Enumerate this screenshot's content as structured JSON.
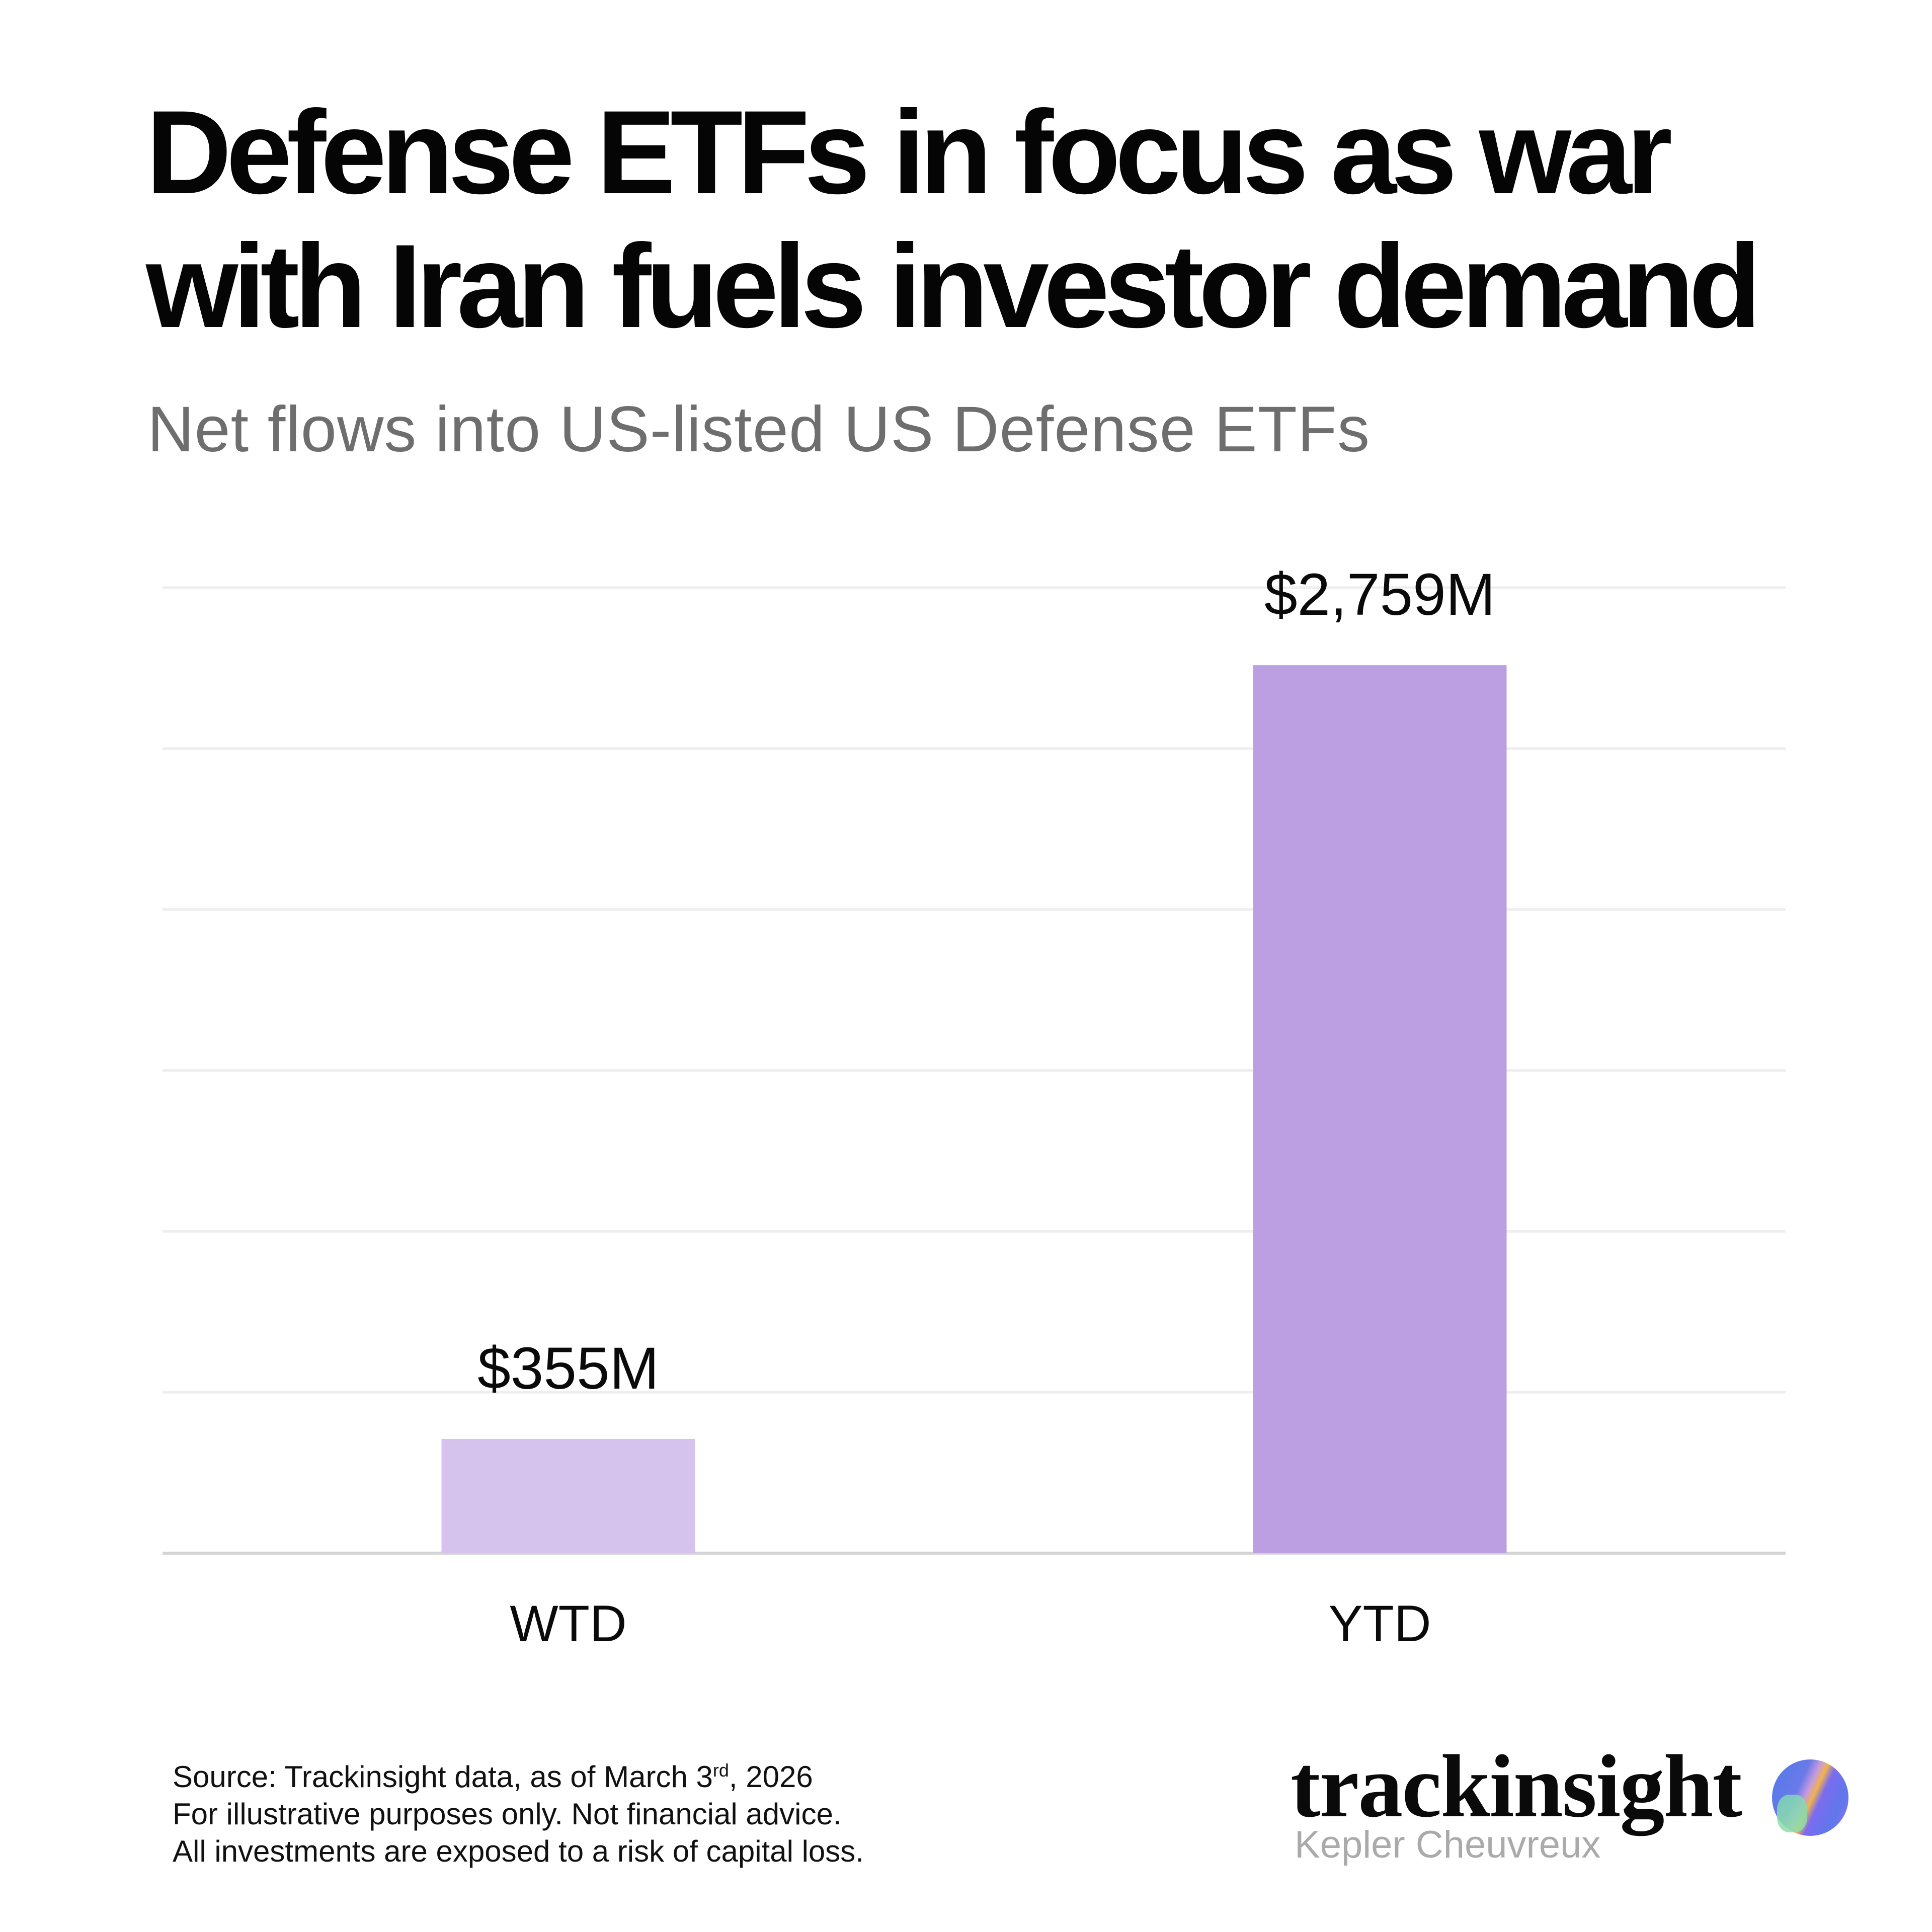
{
  "header": {
    "title_line1": "Defense ETFs in focus as war",
    "title_line2": "with Iran fuels investor demand",
    "subtitle": "Net flows into US-listed US Defense ETFs"
  },
  "chart_data": {
    "type": "bar",
    "title": "Defense ETFs in focus as war with Iran fuels investor demand",
    "subtitle": "Net flows into US-listed US Defense ETFs",
    "categories": [
      "WTD",
      "YTD"
    ],
    "values": [
      355,
      2759
    ],
    "data_labels": [
      "$355M",
      "$2,759M"
    ],
    "unit": "$M",
    "colors": [
      "#d5c3ee",
      "#bc9fe3"
    ],
    "ylim": [
      0,
      3000
    ],
    "y_grid_step": 500,
    "grid": true,
    "y_tick_labels_shown": false,
    "xlabel": "",
    "ylabel": ""
  },
  "footer": {
    "source_prefix": "Source: Trackinsight data, as of March 3",
    "source_sup": "rd",
    "source_suffix": ", 2026",
    "line2": "For illustrative purposes only. Not financial advice.",
    "line3": "All investments are exposed to a risk of capital loss."
  },
  "logo": {
    "wordmark": "trackinsight",
    "subtext": "Kepler Cheuvreux"
  }
}
